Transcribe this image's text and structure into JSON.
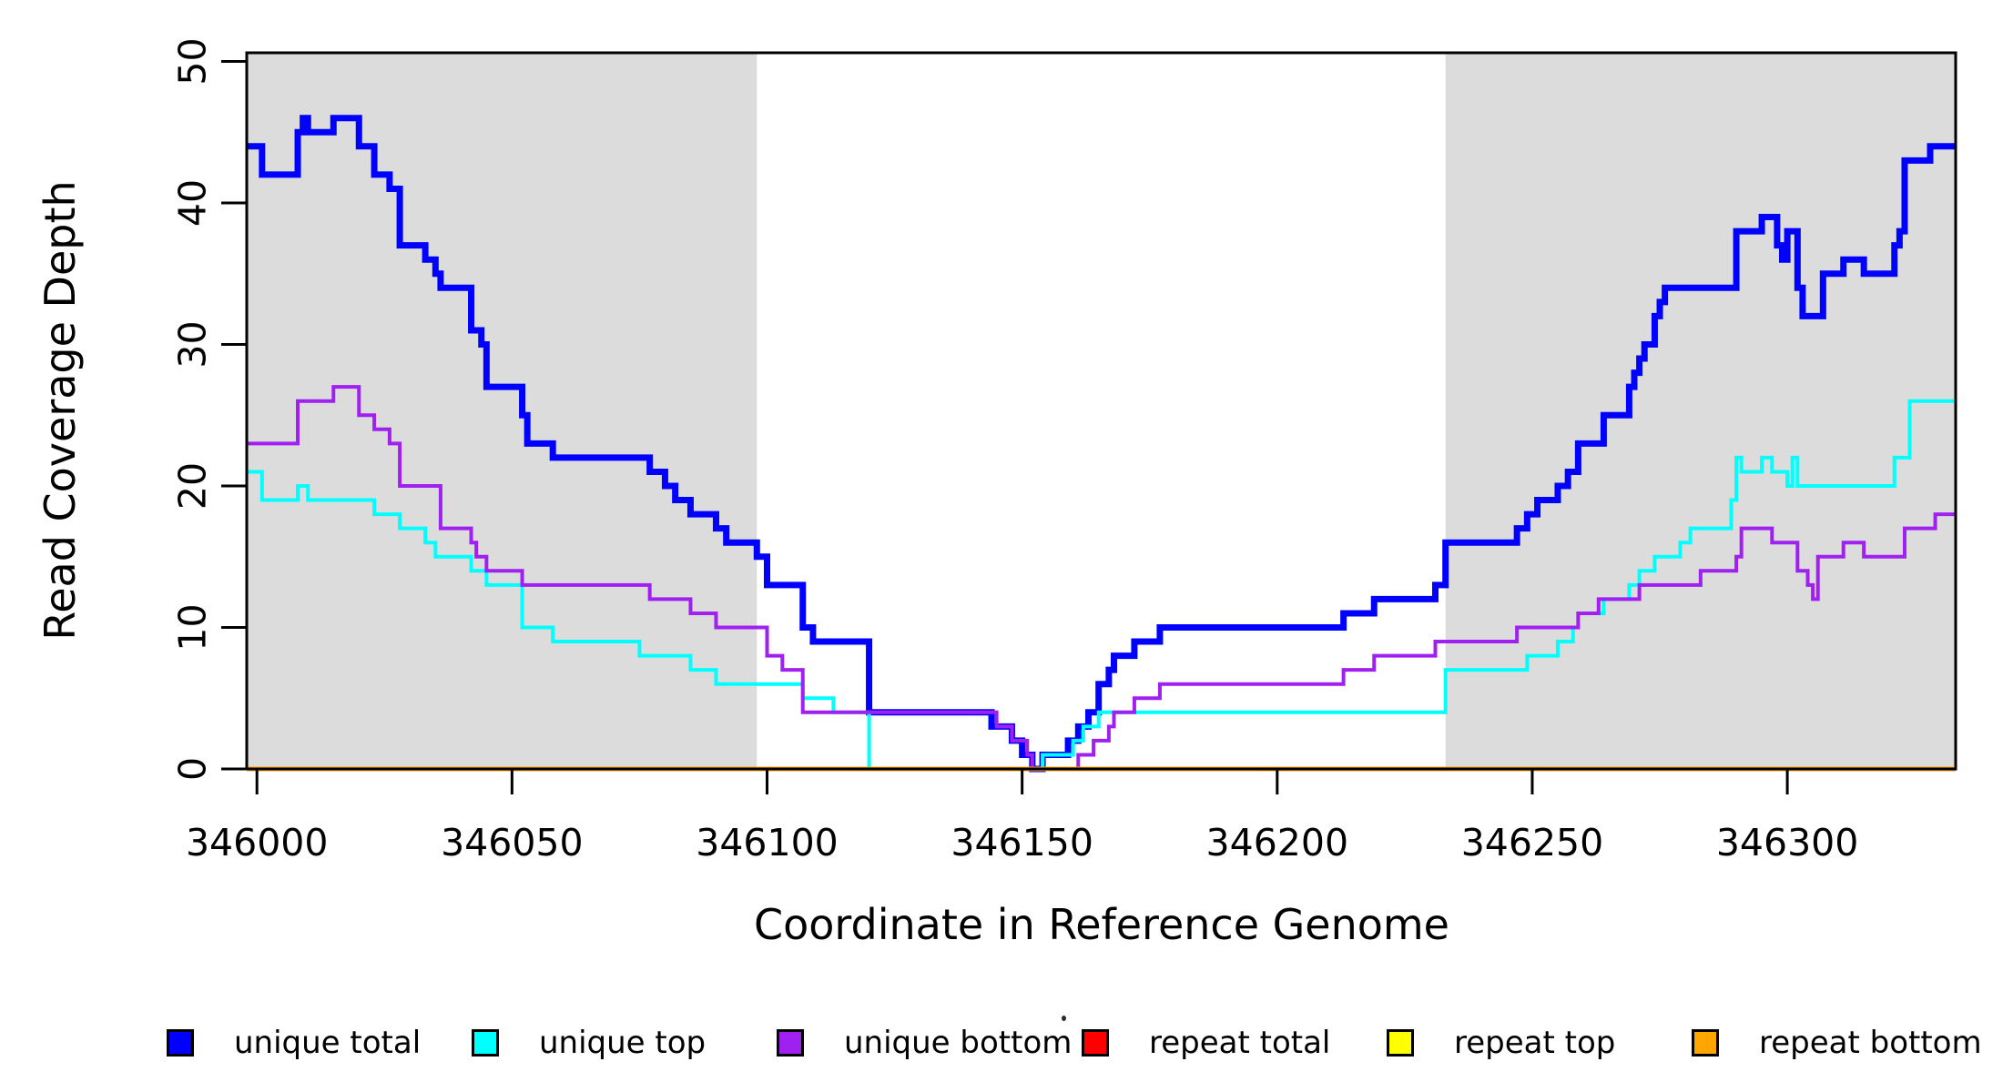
{
  "chart_data": {
    "type": "line",
    "subtype": "step",
    "title": "",
    "xlabel": "Coordinate in Reference Genome",
    "ylabel": "Read Coverage Depth",
    "xlim": [
      345998,
      346333
    ],
    "ylim": [
      0,
      50.6
    ],
    "x_ticks": [
      346000,
      346050,
      346100,
      346150,
      346200,
      346250,
      346300
    ],
    "y_ticks": [
      0,
      10,
      20,
      30,
      40,
      50
    ],
    "grid": false,
    "legend_position": "bottom",
    "shaded_regions": [
      {
        "x0": 345998,
        "x1": 346098,
        "color": "#DCDCDC"
      },
      {
        "x0": 346233,
        "x1": 346333,
        "color": "#DCDCDC"
      }
    ],
    "series": [
      {
        "name": "unique total",
        "color": "#0000FF",
        "width": 7,
        "points": [
          [
            345998,
            44
          ],
          [
            346001,
            42
          ],
          [
            346008,
            45
          ],
          [
            346009,
            46
          ],
          [
            346010,
            45
          ],
          [
            346015,
            46
          ],
          [
            346020,
            44
          ],
          [
            346023,
            42
          ],
          [
            346026,
            41
          ],
          [
            346028,
            37
          ],
          [
            346033,
            36
          ],
          [
            346035,
            35
          ],
          [
            346036,
            34
          ],
          [
            346042,
            31
          ],
          [
            346044,
            30
          ],
          [
            346045,
            27
          ],
          [
            346052,
            25
          ],
          [
            346053,
            23
          ],
          [
            346058,
            22
          ],
          [
            346077,
            21
          ],
          [
            346080,
            20
          ],
          [
            346082,
            19
          ],
          [
            346085,
            18
          ],
          [
            346090,
            17
          ],
          [
            346092,
            16
          ],
          [
            346098,
            15
          ],
          [
            346100,
            13
          ],
          [
            346107,
            10
          ],
          [
            346109,
            9
          ],
          [
            346120,
            4
          ],
          [
            346144,
            3
          ],
          [
            346148,
            2
          ],
          [
            346150,
            1
          ],
          [
            346152,
            0
          ],
          [
            346154,
            1
          ],
          [
            346159,
            2
          ],
          [
            346161,
            3
          ],
          [
            346163,
            4
          ],
          [
            346165,
            6
          ],
          [
            346167,
            7
          ],
          [
            346168,
            8
          ],
          [
            346172,
            9
          ],
          [
            346177,
            10
          ],
          [
            346213,
            11
          ],
          [
            346219,
            12
          ],
          [
            346231,
            13
          ],
          [
            346233,
            16
          ],
          [
            346247,
            17
          ],
          [
            346249,
            18
          ],
          [
            346251,
            19
          ],
          [
            346255,
            20
          ],
          [
            346257,
            21
          ],
          [
            346259,
            23
          ],
          [
            346264,
            25
          ],
          [
            346269,
            27
          ],
          [
            346270,
            28
          ],
          [
            346271,
            29
          ],
          [
            346272,
            30
          ],
          [
            346274,
            32
          ],
          [
            346275,
            33
          ],
          [
            346276,
            34
          ],
          [
            346290,
            38
          ],
          [
            346295,
            39
          ],
          [
            346298,
            37
          ],
          [
            346299,
            36
          ],
          [
            346300,
            38
          ],
          [
            346302,
            34
          ],
          [
            346303,
            32
          ],
          [
            346307,
            35
          ],
          [
            346311,
            36
          ],
          [
            346315,
            35
          ],
          [
            346321,
            37
          ],
          [
            346322,
            38
          ],
          [
            346323,
            43
          ],
          [
            346328,
            44
          ]
        ]
      },
      {
        "name": "unique top",
        "color": "#00FFFF",
        "width": 4,
        "points": [
          [
            345998,
            21
          ],
          [
            346001,
            19
          ],
          [
            346008,
            20
          ],
          [
            346010,
            19
          ],
          [
            346023,
            18
          ],
          [
            346028,
            17
          ],
          [
            346033,
            16
          ],
          [
            346035,
            15
          ],
          [
            346042,
            14
          ],
          [
            346045,
            13
          ],
          [
            346052,
            10
          ],
          [
            346058,
            9
          ],
          [
            346075,
            8
          ],
          [
            346085,
            7
          ],
          [
            346090,
            6
          ],
          [
            346107,
            5
          ],
          [
            346113,
            4
          ],
          [
            346120,
            0
          ],
          [
            346154,
            1
          ],
          [
            346160,
            2
          ],
          [
            346162,
            3
          ],
          [
            346165,
            4
          ],
          [
            346233,
            7
          ],
          [
            346249,
            8
          ],
          [
            346255,
            9
          ],
          [
            346258,
            10
          ],
          [
            346259,
            11
          ],
          [
            346264,
            12
          ],
          [
            346269,
            13
          ],
          [
            346271,
            14
          ],
          [
            346274,
            15
          ],
          [
            346279,
            16
          ],
          [
            346281,
            17
          ],
          [
            346289,
            19
          ],
          [
            346290,
            22
          ],
          [
            346291,
            21
          ],
          [
            346295,
            22
          ],
          [
            346297,
            21
          ],
          [
            346300,
            20
          ],
          [
            346301,
            22
          ],
          [
            346302,
            20
          ],
          [
            346321,
            22
          ],
          [
            346324,
            26
          ]
        ]
      },
      {
        "name": "unique bottom",
        "color": "#A020F0",
        "width": 4,
        "points": [
          [
            345998,
            23
          ],
          [
            346008,
            26
          ],
          [
            346015,
            27
          ],
          [
            346020,
            25
          ],
          [
            346023,
            24
          ],
          [
            346026,
            23
          ],
          [
            346028,
            20
          ],
          [
            346036,
            17
          ],
          [
            346042,
            16
          ],
          [
            346043,
            15
          ],
          [
            346045,
            14
          ],
          [
            346052,
            13
          ],
          [
            346077,
            12
          ],
          [
            346085,
            11
          ],
          [
            346090,
            10
          ],
          [
            346100,
            8
          ],
          [
            346103,
            7
          ],
          [
            346107,
            4
          ],
          [
            346145,
            3
          ],
          [
            346148,
            2
          ],
          [
            346151,
            1
          ],
          [
            346152,
            0
          ],
          [
            346161,
            1
          ],
          [
            346164,
            2
          ],
          [
            346167,
            3
          ],
          [
            346168,
            4
          ],
          [
            346172,
            5
          ],
          [
            346177,
            6
          ],
          [
            346213,
            7
          ],
          [
            346219,
            8
          ],
          [
            346231,
            9
          ],
          [
            346247,
            10
          ],
          [
            346259,
            11
          ],
          [
            346263,
            12
          ],
          [
            346271,
            13
          ],
          [
            346283,
            14
          ],
          [
            346290,
            15
          ],
          [
            346291,
            17
          ],
          [
            346297,
            16
          ],
          [
            346302,
            14
          ],
          [
            346304,
            13
          ],
          [
            346305,
            12
          ],
          [
            346306,
            15
          ],
          [
            346311,
            16
          ],
          [
            346315,
            15
          ],
          [
            346323,
            17
          ],
          [
            346329,
            18
          ]
        ]
      },
      {
        "name": "repeat total",
        "color": "#FF0000",
        "width": 4,
        "points": [
          [
            345998,
            0
          ]
        ]
      },
      {
        "name": "repeat top",
        "color": "#FFFF00",
        "width": 4,
        "points": [
          [
            345998,
            0
          ]
        ]
      },
      {
        "name": "repeat bottom",
        "color": "#FFA500",
        "width": 5,
        "points": [
          [
            345998,
            0
          ]
        ]
      }
    ]
  },
  "axes": {
    "x_label": "Coordinate in Reference Genome",
    "y_label": "Read Coverage Depth"
  },
  "legend": {
    "items": [
      {
        "label": "unique total",
        "color": "#0000FF"
      },
      {
        "label": "unique top",
        "color": "#00FFFF"
      },
      {
        "label": "unique bottom",
        "color": "#A020F0"
      },
      {
        "label": "repeat total",
        "color": "#FF0000"
      },
      {
        "label": "repeat top",
        "color": "#FFFF00"
      },
      {
        "label": "repeat bottom",
        "color": "#FFA500"
      }
    ]
  }
}
